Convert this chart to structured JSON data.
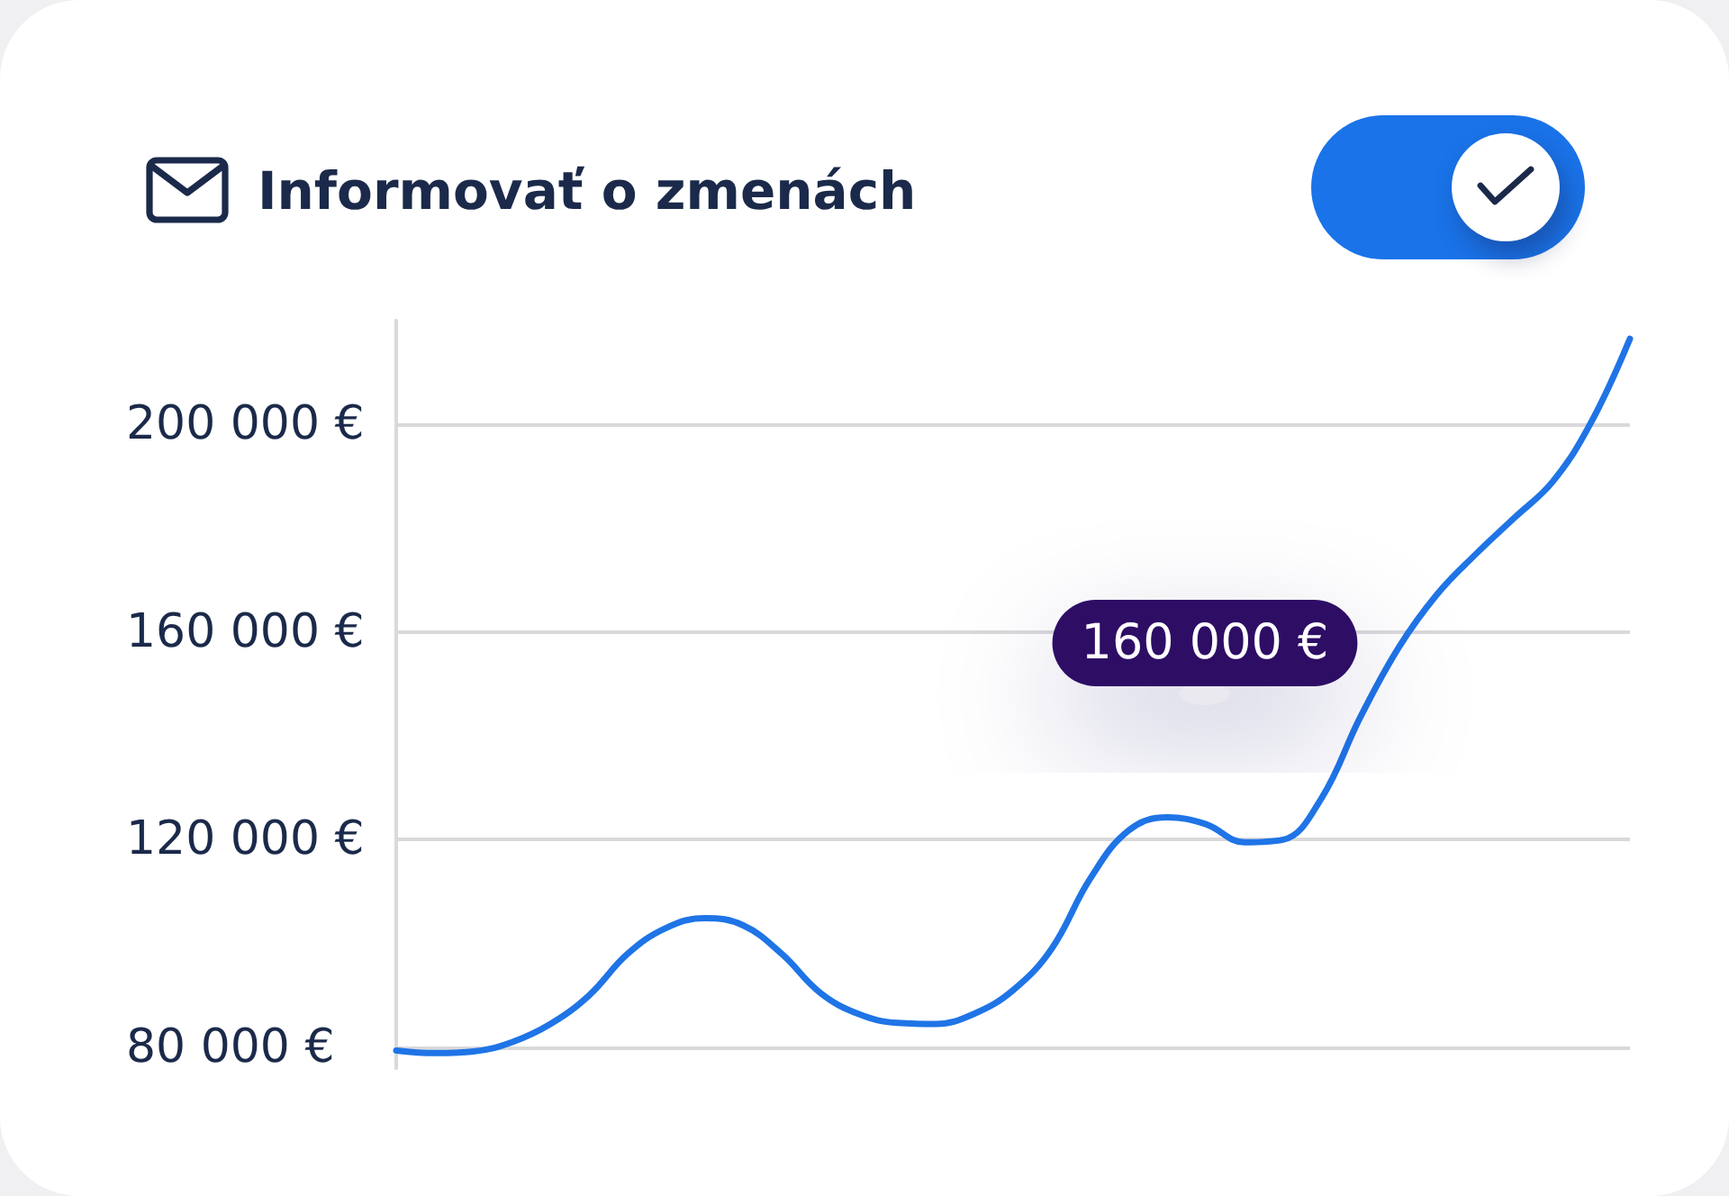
{
  "chart_data": {
    "type": "line",
    "title": "Informovať o zmenách",
    "categories": [
      null,
      null,
      null,
      null,
      null,
      null,
      null,
      null,
      null,
      null,
      null,
      null,
      null,
      null,
      null,
      null,
      null,
      null,
      null,
      null,
      null,
      null,
      null,
      null,
      null,
      null,
      null,
      null,
      null,
      null,
      null,
      null,
      null
    ],
    "values": [
      79400,
      78900,
      79200,
      81000,
      84500,
      90000,
      98000,
      103000,
      104900,
      103500,
      98000,
      90500,
      86400,
      84700,
      84500,
      86500,
      91000,
      99000,
      112500,
      121800,
      124300,
      123000,
      119500,
      120000,
      128000,
      143500,
      157000,
      167300,
      175000,
      182000,
      189000,
      200500,
      216500
    ],
    "color": "#1f74e6",
    "marker": "none",
    "line_style": "solid",
    "ylim": [
      76000,
      220000
    ],
    "yticks": [
      {
        "value": 80000,
        "label": "80 000 €"
      },
      {
        "value": 120000,
        "label": "120 000 €"
      },
      {
        "value": 160000,
        "label": "160 000 €"
      },
      {
        "value": 200000,
        "label": "200 000 €"
      }
    ],
    "grid": "y",
    "tick_labels": "y",
    "annotations": [
      "160 000 €"
    ]
  }
}
